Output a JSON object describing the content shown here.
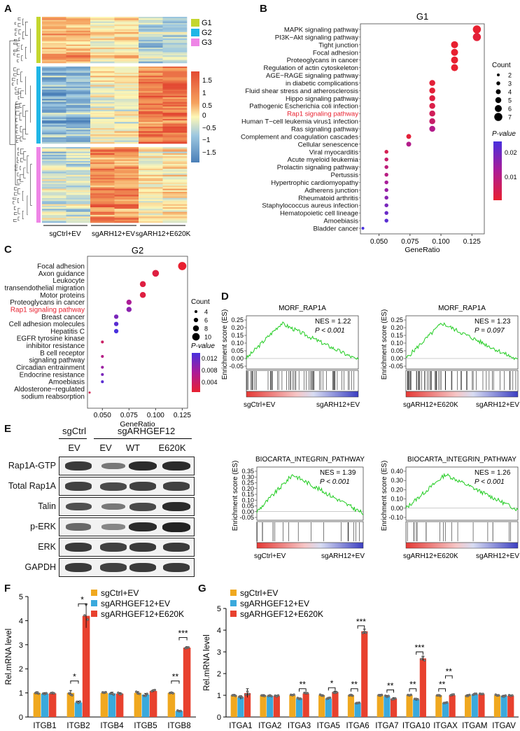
{
  "panels": {
    "A": "A",
    "B": "B",
    "C": "C",
    "D": "D",
    "E": "E",
    "F": "F",
    "G": "G"
  },
  "heatmap": {
    "legend_groups": [
      "G1",
      "G2",
      "G3"
    ],
    "group_colors": [
      "#c4d62e",
      "#1fb6e6",
      "#ee85e6"
    ],
    "scale_ticks": [
      "1.5",
      "1",
      "0.5",
      "0",
      "−0.5",
      "−1",
      "−1.5"
    ],
    "columns": [
      "sgCtrl+EV",
      "sgARH12+EV",
      "sgARH12+E620K"
    ]
  },
  "chart_data": [
    {
      "type": "scatter",
      "panel": "B",
      "title": "G1",
      "xlabel": "GeneRatio",
      "xlim": [
        0.035,
        0.135
      ],
      "xticks": [
        "0.050",
        "0.075",
        "0.100",
        "0.125"
      ],
      "terms": [
        "MAPK signaling pathway",
        "PI3K−Akt signaling pathway",
        "Tight junction",
        "Focal adhesion",
        "Proteoglycans in cancer",
        "Regulation of actin cytoskeleton",
        "AGE−RAGE signaling pathway",
        "in diabetic complications",
        "Fluid shear stress and atherosclerosis",
        "Hippo signaling pathway",
        "Pathogenic Escherichia coli infection",
        "Rap1 signaling pathway",
        "Human T−cell leukemia virus1 infection",
        "Ras signaling pathway",
        "Complement and coagulation cascades",
        "Cellular senescence",
        "Viral myocarditis",
        "Acute myeloid leukemia",
        "Prolactin signaling pathway",
        "Pertussis",
        "Hypertrophic cardiomyopathy",
        "Adherens junction",
        "Rheumatoid arthritis",
        "Staphylococcus aureus infection",
        "Hematopoietic cell lineage",
        "Amoebiasis",
        "Bladder cancer"
      ],
      "points": [
        {
          "row": 0,
          "ratio": 0.129,
          "count": 7,
          "p": 0.001
        },
        {
          "row": 1,
          "ratio": 0.129,
          "count": 7,
          "p": 0.002
        },
        {
          "row": 2,
          "ratio": 0.111,
          "count": 6,
          "p": 0.001
        },
        {
          "row": 3,
          "ratio": 0.111,
          "count": 6,
          "p": 0.001
        },
        {
          "row": 4,
          "ratio": 0.111,
          "count": 6,
          "p": 0.001
        },
        {
          "row": 5,
          "ratio": 0.111,
          "count": 6,
          "p": 0.001
        },
        {
          "row": 7,
          "ratio": 0.093,
          "count": 5,
          "p": 0.002
        },
        {
          "row": 8,
          "ratio": 0.093,
          "count": 5,
          "p": 0.002
        },
        {
          "row": 9,
          "ratio": 0.093,
          "count": 5,
          "p": 0.003
        },
        {
          "row": 10,
          "ratio": 0.093,
          "count": 5,
          "p": 0.004
        },
        {
          "row": 11,
          "ratio": 0.093,
          "count": 5,
          "p": 0.006
        },
        {
          "row": 12,
          "ratio": 0.093,
          "count": 5,
          "p": 0.008
        },
        {
          "row": 13,
          "ratio": 0.093,
          "count": 5,
          "p": 0.012
        },
        {
          "row": 14,
          "ratio": 0.074,
          "count": 4,
          "p": 0.002
        },
        {
          "row": 15,
          "ratio": 0.074,
          "count": 4,
          "p": 0.012
        },
        {
          "row": 16,
          "ratio": 0.056,
          "count": 3,
          "p": 0.005
        },
        {
          "row": 17,
          "ratio": 0.056,
          "count": 3,
          "p": 0.008
        },
        {
          "row": 18,
          "ratio": 0.056,
          "count": 3,
          "p": 0.01
        },
        {
          "row": 19,
          "ratio": 0.056,
          "count": 3,
          "p": 0.011
        },
        {
          "row": 20,
          "ratio": 0.056,
          "count": 3,
          "p": 0.014
        },
        {
          "row": 21,
          "ratio": 0.056,
          "count": 3,
          "p": 0.016
        },
        {
          "row": 22,
          "ratio": 0.056,
          "count": 3,
          "p": 0.018
        },
        {
          "row": 23,
          "ratio": 0.056,
          "count": 3,
          "p": 0.02
        },
        {
          "row": 24,
          "ratio": 0.056,
          "count": 3,
          "p": 0.022
        },
        {
          "row": 25,
          "ratio": 0.056,
          "count": 3,
          "p": 0.024
        },
        {
          "row": 26,
          "ratio": 0.037,
          "count": 2,
          "p": 0.026
        }
      ],
      "highlight_row": 11,
      "size_legend_title": "Count",
      "size_legend": [
        "2",
        "3",
        "4",
        "5",
        "6",
        "7"
      ],
      "color_legend_title": "P-value",
      "color_ticks": [
        "0.02",
        "0.01"
      ]
    },
    {
      "type": "scatter",
      "panel": "C",
      "title": "G2",
      "xlabel": "GeneRatio",
      "xlim": [
        0.036,
        0.13
      ],
      "xticks": [
        "0.050",
        "0.075",
        "0.100",
        "0.125"
      ],
      "terms": [
        "Focal adhesion",
        "Axon guidance",
        "Leukocyte",
        "transendothelial migration",
        "Motor proteins",
        "Proteoglycans in cancer",
        "Rap1 signaling pathway",
        "Breast cancer",
        "Cell adhesion molecules",
        "Hepatitis C",
        "EGFR tyrosine kinase",
        "inhibitor resistance",
        "B cell receptor",
        "signaling pathway",
        "Circadian entrainment",
        "Endocrine resistance",
        "Amoebiasis",
        "Aldosterone−regulated",
        "sodium reabsorption"
      ],
      "points": [
        {
          "row": 0,
          "ratio": 0.125,
          "count": 11,
          "p": 0.001
        },
        {
          "row": 1,
          "ratio": 0.1,
          "count": 9,
          "p": 0.002
        },
        {
          "row": 2.5,
          "ratio": 0.088,
          "count": 8,
          "p": 0.002
        },
        {
          "row": 4,
          "ratio": 0.088,
          "count": 8,
          "p": 0.002
        },
        {
          "row": 5,
          "ratio": 0.075,
          "count": 7,
          "p": 0.007
        },
        {
          "row": 6,
          "ratio": 0.075,
          "count": 7,
          "p": 0.009
        },
        {
          "row": 7,
          "ratio": 0.063,
          "count": 6,
          "p": 0.01
        },
        {
          "row": 8,
          "ratio": 0.063,
          "count": 6,
          "p": 0.012
        },
        {
          "row": 9,
          "ratio": 0.063,
          "count": 6,
          "p": 0.013
        },
        {
          "row": 10.5,
          "ratio": 0.05,
          "count": 4,
          "p": 0.004
        },
        {
          "row": 12.5,
          "ratio": 0.05,
          "count": 4,
          "p": 0.006
        },
        {
          "row": 14,
          "ratio": 0.05,
          "count": 4,
          "p": 0.008
        },
        {
          "row": 15,
          "ratio": 0.05,
          "count": 4,
          "p": 0.01
        },
        {
          "row": 16,
          "ratio": 0.05,
          "count": 4,
          "p": 0.012
        },
        {
          "row": 17.5,
          "ratio": 0.038,
          "count": 3,
          "p": 0.003
        }
      ],
      "highlight_term": 6,
      "size_legend_title": "Count",
      "size_legend": [
        "4",
        "6",
        "8",
        "10"
      ],
      "color_legend_title": "P-value",
      "color_ticks": [
        "0.012",
        "0.008",
        "0.004"
      ]
    },
    {
      "type": "bar",
      "panel": "F",
      "ylabel": "Rel.mRNA level",
      "ylim": [
        0,
        5
      ],
      "yticks": [
        "0",
        "1",
        "2",
        "3",
        "4",
        "5"
      ],
      "categories": [
        "ITGB1",
        "ITGB2",
        "ITGB4",
        "ITGB5",
        "ITGB8"
      ],
      "series": [
        {
          "name": "sgCtrl+EV",
          "color": "#f0a81f",
          "values": [
            1.0,
            1.0,
            1.0,
            1.0,
            1.0
          ]
        },
        {
          "name": "sgARHGEF12+EV",
          "color": "#3aa9dc",
          "values": [
            0.97,
            0.6,
            0.98,
            0.93,
            0.25
          ]
        },
        {
          "name": "sgARHGEF12+E620K",
          "color": "#e8412e",
          "values": [
            0.98,
            4.2,
            0.97,
            1.08,
            2.88
          ]
        }
      ],
      "errors": [
        [
          0.05,
          0.1,
          0.04,
          0.05,
          0.03
        ],
        [
          0.04,
          0.06,
          0.05,
          0.05,
          0.02
        ],
        [
          0.04,
          0.5,
          0.04,
          0.04,
          0.04
        ]
      ],
      "significance": [
        {
          "cat": 1,
          "from": 0,
          "to": 1,
          "y": 1.5,
          "label": "*"
        },
        {
          "cat": 1,
          "from": 1,
          "to": 2,
          "y": 4.7,
          "label": "*"
        },
        {
          "cat": 4,
          "from": 0,
          "to": 1,
          "y": 1.5,
          "label": "**"
        },
        {
          "cat": 4,
          "from": 1,
          "to": 2,
          "y": 3.3,
          "label": "***"
        }
      ]
    },
    {
      "type": "bar",
      "panel": "G",
      "ylabel": "Rel.mRNA level",
      "ylim": [
        0,
        5
      ],
      "yticks": [
        "0",
        "1",
        "2",
        "3",
        "4",
        "5"
      ],
      "categories": [
        "ITGA1",
        "ITGA2",
        "ITGA3",
        "ITGA5",
        "ITGA6",
        "ITGA7",
        "ITGA10",
        "ITGAX",
        "ITGAM",
        "ITGAV"
      ],
      "series": [
        {
          "name": "sgCtrl+EV",
          "color": "#f0a81f",
          "values": [
            1.0,
            1.0,
            1.0,
            1.0,
            1.0,
            1.0,
            1.0,
            1.0,
            1.0,
            1.0
          ]
        },
        {
          "name": "sgARHGEF12+EV",
          "color": "#3aa9dc",
          "values": [
            0.9,
            0.97,
            0.85,
            0.85,
            0.65,
            0.95,
            0.8,
            0.65,
            1.05,
            0.97
          ]
        },
        {
          "name": "sgARHGEF12+E620K",
          "color": "#e8412e",
          "values": [
            1.1,
            0.97,
            1.08,
            1.15,
            3.95,
            0.85,
            2.7,
            1.0,
            1.05,
            0.98
          ]
        }
      ],
      "errors": [
        [
          0.04,
          0.03,
          0.04,
          0.03,
          0.04,
          0.04,
          0.03,
          0.03,
          0.03,
          0.03
        ],
        [
          0.08,
          0.03,
          0.03,
          0.04,
          0.03,
          0.04,
          0.05,
          0.03,
          0.03,
          0.03
        ],
        [
          0.2,
          0.03,
          0.04,
          0.04,
          0.1,
          0.04,
          0.1,
          0.04,
          0.03,
          0.03
        ]
      ],
      "significance": [
        {
          "cat": 2,
          "from": 1,
          "to": 2,
          "y": 1.3,
          "label": "**"
        },
        {
          "cat": 3,
          "from": 1,
          "to": 2,
          "y": 1.35,
          "label": "*"
        },
        {
          "cat": 4,
          "from": 0,
          "to": 1,
          "y": 1.3,
          "label": "**"
        },
        {
          "cat": 4,
          "from": 1,
          "to": 2,
          "y": 4.2,
          "label": "***"
        },
        {
          "cat": 5,
          "from": 1,
          "to": 2,
          "y": 1.25,
          "label": "**"
        },
        {
          "cat": 6,
          "from": 0,
          "to": 1,
          "y": 1.3,
          "label": "**"
        },
        {
          "cat": 6,
          "from": 1,
          "to": 2,
          "y": 3.0,
          "label": "***"
        },
        {
          "cat": 7,
          "from": 0,
          "to": 1,
          "y": 1.3,
          "label": "**"
        },
        {
          "cat": 7,
          "from": 1,
          "to": 2,
          "y": 1.9,
          "label": "**"
        }
      ]
    }
  ],
  "gsea": [
    {
      "title": "MORF_RAP1A",
      "nes": "NES = 1.22",
      "pval": "P < 0.001",
      "left": "sgCtrl+EV",
      "right": "sgARH12+EV",
      "yticks": [
        "0.25",
        "0.20",
        "0.15",
        "0.10",
        "0.05",
        "0.00",
        "-0.05"
      ],
      "ylabel": "Enrichment score (ES)"
    },
    {
      "title": "MORF_RAP1A",
      "nes": "NES = 1.23",
      "pval": "P = 0.097",
      "left": "sgARH12+E620K",
      "right": "sgARH12+EV",
      "yticks": [
        "0.25",
        "0.20",
        "0.15",
        "0.10",
        "0.05",
        "0.00",
        "-0.05"
      ],
      "ylabel": "Enrichment score (ES)"
    },
    {
      "title": "BIOCARTA_INTEGRIN_PATHWAY",
      "nes": "NES = 1.39",
      "pval": "P < 0.001",
      "left": "sgCtrl+EV",
      "right": "sgARH12+EV",
      "yticks": [
        "0.35",
        "0.30",
        "0.25",
        "0.20",
        "0.15",
        "0.10",
        "0.05",
        "0.00",
        "-0.05"
      ],
      "ylabel": "Enrichment score (ES)"
    },
    {
      "title": "BIOCARTA_INTEGRIN_PATHWAY",
      "nes": "NES = 1.26",
      "pval": "P < 0.001",
      "left": "sgARH12+E620K",
      "right": "sgARH12+EV",
      "yticks": [
        "0.40",
        "0.30",
        "0.20",
        "0.10",
        "0.00",
        "-0.10"
      ],
      "ylabel": "Enrichment score (ES)"
    }
  ],
  "western": {
    "header_ctrl": "sgCtrl",
    "header_arh": "sgARHGEF12",
    "lanes": [
      "EV",
      "EV",
      "WT",
      "E620K"
    ],
    "rows": [
      "Rap1A-GTP",
      "Total Rap1A",
      "Talin",
      "p-ERK",
      "ERK",
      "GAPDH"
    ],
    "intensity": [
      [
        0.85,
        0.45,
        0.95,
        0.95
      ],
      [
        0.8,
        0.75,
        0.8,
        0.8
      ],
      [
        0.7,
        0.45,
        0.75,
        0.95
      ],
      [
        0.55,
        0.35,
        0.95,
        1.0
      ],
      [
        0.85,
        0.8,
        0.85,
        0.85
      ],
      [
        0.85,
        0.8,
        0.85,
        0.85
      ]
    ]
  }
}
